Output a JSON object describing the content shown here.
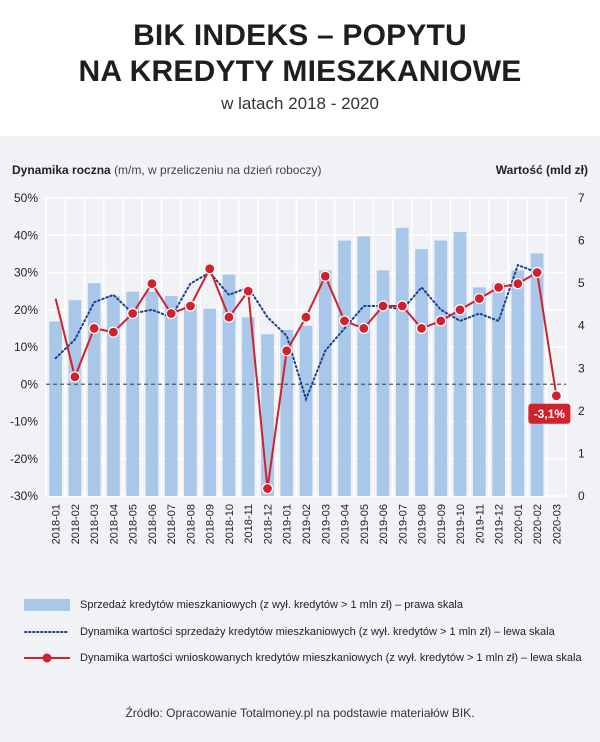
{
  "header": {
    "title_line1": "BIK INDEKS – POPYTU",
    "title_line2": "NA KREDYTY MIESZKANIOWE",
    "subtitle": "w latach 2018 - 2020"
  },
  "axis_labels": {
    "left_bold": "Dynamika roczna",
    "left_note": "(m/m, w przeliczeniu na dzień roboczy)",
    "right": "Wartość (mld zł)"
  },
  "legend": {
    "bars": "Sprzedaż kredytów mieszkaniowych (z wył. kredytów > 1 mln zł) – prawa skala",
    "dotted": "Dynamika wartości sprzedaży kredytów mieszkaniowych (z wył. kredytów > 1 mln zł) – lewa skala",
    "red": "Dynamika wartości wnioskowanych kredytów mieszkaniowych (z wył. kredytów > 1 mln zł) – lewa skala"
  },
  "source": "Źródło: Opracowanie Totalmoney.pl na podstawie materiałów BIK.",
  "colors": {
    "bars": "#a9c7e8",
    "dotted": "#1a3f8f",
    "red": "#d0212d",
    "panel": "#f1f2f6",
    "grid": "#ffffff"
  },
  "chart_data": {
    "type": "bar",
    "categories": [
      "2018-01",
      "2018-02",
      "2018-03",
      "2018-04",
      "2018-05",
      "2018-06",
      "2018-07",
      "2018-08",
      "2018-09",
      "2018-10",
      "2018-11",
      "2018-12",
      "2019-01",
      "2019-02",
      "2019-03",
      "2019-04",
      "2019-05",
      "2019-06",
      "2019-07",
      "2019-08",
      "2019-09",
      "2019-10",
      "2019-11",
      "2019-12",
      "2020-01",
      "2020-02",
      "2020-03"
    ],
    "left_axis": {
      "min": -30,
      "max": 50,
      "ticks": [
        "-30%",
        "-20%",
        "-10%",
        "0%",
        "10%",
        "20%",
        "30%",
        "40%",
        "50%"
      ],
      "tick_values": [
        -30,
        -20,
        -10,
        0,
        10,
        20,
        30,
        40,
        50
      ]
    },
    "right_axis": {
      "min": 0,
      "max": 7,
      "ticks": [
        "0",
        "1",
        "2",
        "3",
        "4",
        "5",
        "6",
        "7"
      ]
    },
    "series": [
      {
        "name": "Sprzedaż kredytów mieszkaniowych (z wył. kredytów > 1 mln zł) – prawa skala",
        "kind": "bar",
        "axis": "right",
        "values": [
          4.1,
          4.6,
          5.0,
          4.7,
          4.8,
          4.8,
          4.7,
          4.5,
          4.4,
          5.2,
          4.2,
          3.8,
          3.9,
          4.0,
          5.3,
          6.0,
          6.1,
          5.3,
          6.3,
          5.8,
          6.0,
          6.2,
          4.9,
          5.0,
          5.3,
          5.7,
          null
        ]
      },
      {
        "name": "Dynamika wartości sprzedaży kredytów mieszkaniowych (z wył. kredytów > 1 mln zł) – lewa skala",
        "kind": "dotted-line",
        "axis": "left",
        "values": [
          7,
          12,
          22,
          24,
          19,
          20,
          18,
          27,
          30,
          24,
          26,
          18,
          13,
          -4,
          9,
          15,
          21,
          21,
          20,
          26,
          20,
          17,
          19,
          17,
          32,
          30,
          null
        ]
      },
      {
        "name": "Dynamika wartości wnioskowanych kredytów mieszkaniowych (z wył. kredytów > 1 mln zł) – lewa skala",
        "kind": "line-markers",
        "axis": "left",
        "values": [
          23,
          2,
          15,
          14,
          19,
          27,
          19,
          21,
          31,
          18,
          25,
          -28,
          9,
          18,
          29,
          17,
          15,
          21,
          21,
          15,
          17,
          20,
          23,
          26,
          27,
          30,
          -3.1
        ]
      }
    ],
    "annotation": {
      "category": "2020-03",
      "label": "-3,1%"
    },
    "legend_position": "bottom"
  }
}
